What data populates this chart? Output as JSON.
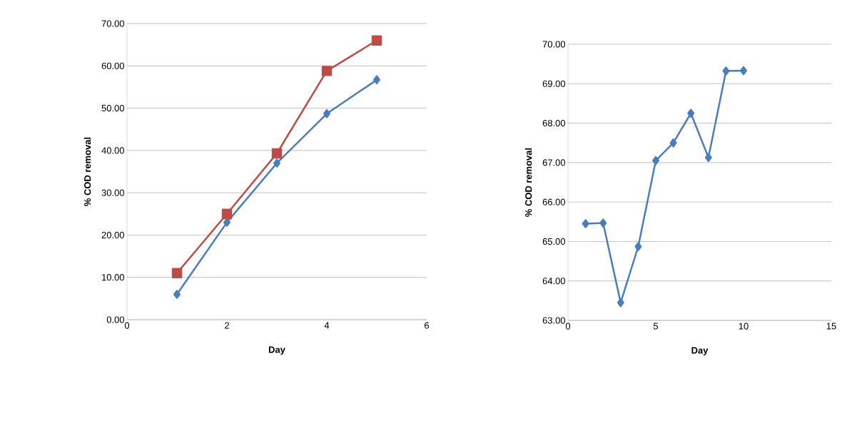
{
  "chart_data": [
    {
      "type": "line",
      "xlabel": "Day",
      "ylabel": "% COD removal",
      "x": [
        1,
        2,
        3,
        4,
        5
      ],
      "xlim": [
        0,
        6
      ],
      "xticks": [
        0,
        2,
        4,
        6
      ],
      "ylim": [
        0,
        70
      ],
      "yticks": [
        {
          "value": 0,
          "label": "0.00"
        },
        {
          "value": 10,
          "label": "10.00"
        },
        {
          "value": 20,
          "label": "20.00"
        },
        {
          "value": 30,
          "label": "30.00"
        },
        {
          "value": 40,
          "label": "40.00"
        },
        {
          "value": 50,
          "label": "50.00"
        },
        {
          "value": 60,
          "label": "60.00"
        },
        {
          "value": 70,
          "label": "70.00"
        }
      ],
      "grid": "y",
      "line_style": "solid",
      "series": [
        {
          "color": "#4a7ebb",
          "marker": "diamond",
          "values": [
            6.0,
            23.0,
            37.0,
            48.7,
            56.7
          ]
        },
        {
          "color": "#be4b48",
          "marker": "square",
          "values": [
            11.0,
            25.0,
            39.3,
            58.8,
            66.0
          ]
        }
      ]
    },
    {
      "type": "line",
      "xlabel": "Day",
      "ylabel": "% COD removal",
      "x": [
        1,
        2,
        3,
        4,
        5,
        6,
        7,
        8,
        9,
        10
      ],
      "xlim": [
        0,
        15
      ],
      "xticks": [
        0,
        5,
        10,
        15
      ],
      "ylim": [
        63,
        70
      ],
      "yticks": [
        {
          "value": 63,
          "label": "63.00"
        },
        {
          "value": 64,
          "label": "64.00"
        },
        {
          "value": 65,
          "label": "65.00"
        },
        {
          "value": 66,
          "label": "66.00"
        },
        {
          "value": 67,
          "label": "67.00"
        },
        {
          "value": 68,
          "label": "68.00"
        },
        {
          "value": 69,
          "label": "69.00"
        },
        {
          "value": 70,
          "label": "70.00"
        }
      ],
      "grid": "y",
      "line_style": "solid",
      "series": [
        {
          "color": "#4a7ebb",
          "marker": "diamond",
          "values": [
            65.45,
            65.47,
            63.45,
            64.87,
            67.05,
            67.5,
            68.25,
            67.13,
            69.32,
            69.33
          ]
        }
      ]
    }
  ]
}
